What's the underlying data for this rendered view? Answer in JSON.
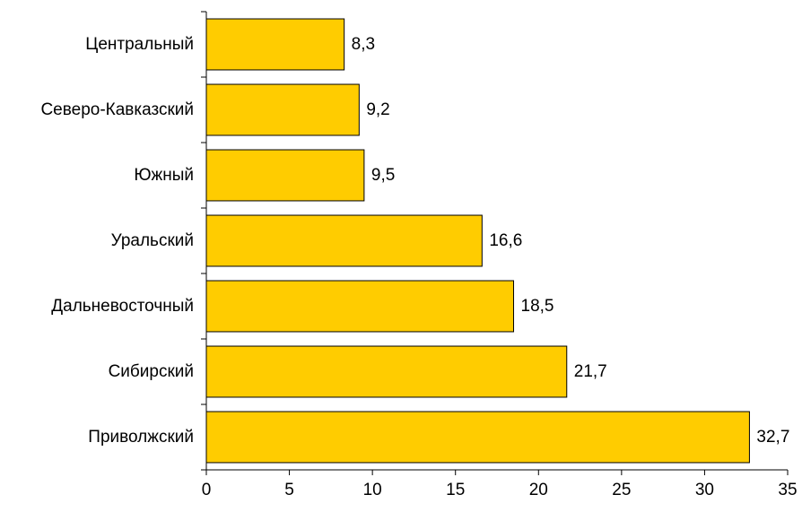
{
  "chart_data": {
    "type": "bar",
    "orientation": "horizontal",
    "categories": [
      "Центральный",
      "Северо-Кавказский",
      "Южный",
      "Уральский",
      "Дальневосточный",
      "Сибирский",
      "Приволжский"
    ],
    "values": [
      8.3,
      9.2,
      9.5,
      16.6,
      18.5,
      21.7,
      32.7
    ],
    "value_labels": [
      "8,3",
      "9,2",
      "9,5",
      "16,6",
      "18,5",
      "21,7",
      "32,7"
    ],
    "xlim": [
      0,
      35
    ],
    "x_ticks": [
      0,
      5,
      10,
      15,
      20,
      25,
      30,
      35
    ],
    "x_tick_labels": [
      "0",
      "5",
      "10",
      "15",
      "20",
      "25",
      "30",
      "35"
    ],
    "bar_color": "#FFCC00",
    "bar_edge_color": "#000000",
    "grid": false,
    "legend": "none"
  }
}
